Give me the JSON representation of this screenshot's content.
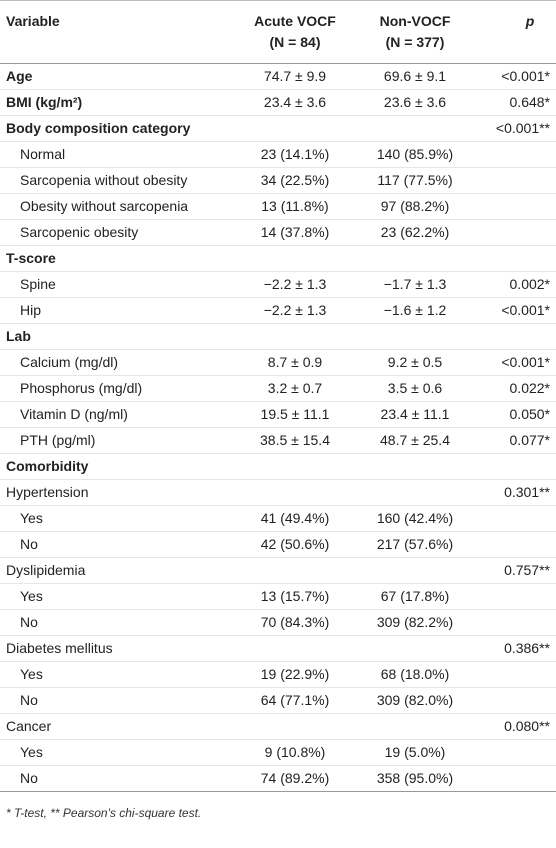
{
  "table": {
    "columns": [
      {
        "title": "Variable"
      },
      {
        "title": "Acute VOCF",
        "subtitle": "(N = 84)"
      },
      {
        "title": "Non-VOCF",
        "subtitle": "(N = 377)"
      },
      {
        "title": "p"
      }
    ],
    "rows": [
      {
        "style": "bold",
        "label": "Age",
        "acute": "74.7 ± 9.9",
        "non": "69.6 ± 9.1",
        "p": "<0.001*"
      },
      {
        "style": "bold",
        "label": "BMI (kg/m²)",
        "acute": "23.4 ± 3.6",
        "non": "23.6 ± 3.6",
        "p": "0.648*"
      },
      {
        "style": "bold",
        "label": "Body composition category",
        "p": "<0.001**"
      },
      {
        "style": "indent",
        "label": "Normal",
        "acute": "23 (14.1%)",
        "non": "140 (85.9%)"
      },
      {
        "style": "indent",
        "label": "Sarcopenia without obesity",
        "acute": "34 (22.5%)",
        "non": "117 (77.5%)"
      },
      {
        "style": "indent",
        "label": "Obesity without sarcopenia",
        "acute": "13 (11.8%)",
        "non": "97 (88.2%)"
      },
      {
        "style": "indent",
        "label": "Sarcopenic obesity",
        "acute": "14 (37.8%)",
        "non": "23 (62.2%)"
      },
      {
        "style": "bold",
        "label": "T-score"
      },
      {
        "style": "indent",
        "label": "Spine",
        "acute": "−2.2 ± 1.3",
        "non": "−1.7 ± 1.3",
        "p": "0.002*"
      },
      {
        "style": "indent",
        "label": "Hip",
        "acute": "−2.2 ± 1.3",
        "non": "−1.6 ± 1.2",
        "p": "<0.001*"
      },
      {
        "style": "bold",
        "label": "Lab"
      },
      {
        "style": "indent",
        "label": "Calcium (mg/dl)",
        "acute": "8.7 ± 0.9",
        "non": "9.2 ± 0.5",
        "p": "<0.001*"
      },
      {
        "style": "indent",
        "label": "Phosphorus (mg/dl)",
        "acute": "3.2 ± 0.7",
        "non": "3.5 ± 0.6",
        "p": "0.022*"
      },
      {
        "style": "indent",
        "label": "Vitamin D (ng/ml)",
        "acute": "19.5 ± 11.1",
        "non": "23.4 ± 11.1",
        "p": "0.050*"
      },
      {
        "style": "indent",
        "label": "PTH (pg/ml)",
        "acute": "38.5 ± 15.4",
        "non": "48.7 ± 25.4",
        "p": "0.077*"
      },
      {
        "style": "bold",
        "label": "Comorbidity"
      },
      {
        "style": "plain",
        "label": "Hypertension",
        "p": "0.301**"
      },
      {
        "style": "indent",
        "label": "Yes",
        "acute": "41 (49.4%)",
        "non": "160 (42.4%)"
      },
      {
        "style": "indent",
        "label": "No",
        "acute": "42 (50.6%)",
        "non": "217 (57.6%)"
      },
      {
        "style": "plain",
        "label": "Dyslipidemia",
        "p": "0.757**"
      },
      {
        "style": "indent",
        "label": "Yes",
        "acute": "13 (15.7%)",
        "non": "67 (17.8%)"
      },
      {
        "style": "indent",
        "label": "No",
        "acute": "70 (84.3%)",
        "non": "309 (82.2%)"
      },
      {
        "style": "plain",
        "label": "Diabetes mellitus",
        "p": "0.386**"
      },
      {
        "style": "indent",
        "label": "Yes",
        "acute": "19 (22.9%)",
        "non": "68 (18.0%)"
      },
      {
        "style": "indent",
        "label": "No",
        "acute": "64 (77.1%)",
        "non": "309 (82.0%)"
      },
      {
        "style": "plain",
        "label": "Cancer",
        "p": "0.080**"
      },
      {
        "style": "indent",
        "label": "Yes",
        "acute": "9 (10.8%)",
        "non": "19 (5.0%)"
      },
      {
        "style": "indent",
        "label": "No",
        "acute": "74 (89.2%)",
        "non": "358 (95.0%)"
      }
    ],
    "footnote": "* T-test, ** Pearson's chi-square test."
  }
}
